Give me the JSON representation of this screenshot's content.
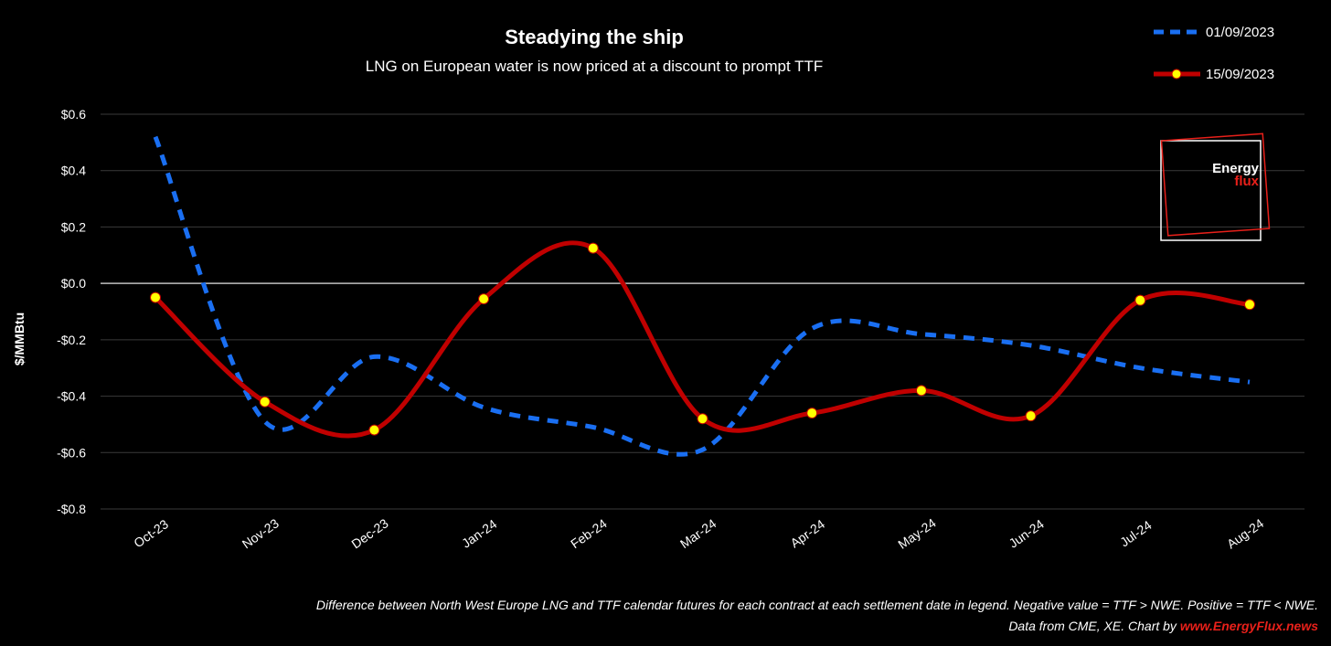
{
  "chart_data": {
    "type": "line",
    "title": "Steadying the ship",
    "subtitle": "LNG on European water is now priced at a discount to prompt TTF",
    "ylabel": "$/MMBtu",
    "categories": [
      "Oct-23",
      "Nov-23",
      "Dec-23",
      "Jan-24",
      "Feb-24",
      "Mar-24",
      "Apr-24",
      "May-24",
      "Jun-24",
      "Jul-24",
      "Aug-24"
    ],
    "ylim": [
      -0.8,
      0.6
    ],
    "yticks": [
      0.6,
      0.4,
      0.2,
      0.0,
      -0.2,
      -0.4,
      -0.6,
      -0.8
    ],
    "ytick_labels": [
      "$0.6",
      "$0.4",
      "$0.2",
      "$0.0",
      "-$0.2",
      "-$0.4",
      "-$0.6",
      "-$0.8"
    ],
    "grid": true,
    "legend_position": "top-right",
    "series": [
      {
        "name": "01/09/2023",
        "style": "dashed",
        "color": "#1a6ff2",
        "values": [
          0.52,
          -0.49,
          -0.26,
          -0.44,
          -0.51,
          -0.59,
          -0.16,
          -0.18,
          -0.22,
          -0.3,
          -0.35
        ]
      },
      {
        "name": "15/09/2023",
        "style": "solid-markers",
        "color": "#c00000",
        "marker_color": "#ffff00",
        "values": [
          -0.05,
          -0.42,
          -0.52,
          -0.055,
          0.125,
          -0.48,
          -0.46,
          -0.38,
          -0.47,
          -0.06,
          -0.075
        ]
      }
    ]
  },
  "logo": {
    "line1": "Energy",
    "line2": "flux"
  },
  "footer": {
    "line1": "Difference between North West Europe LNG and TTF calendar futures for  each contract at each settlement date in legend. Negative value = TTF > NWE. Positive = TTF < NWE.",
    "line2_prefix": "Data from CME, XE. Chart by ",
    "line2_link": "www.EnergyFlux.news"
  }
}
